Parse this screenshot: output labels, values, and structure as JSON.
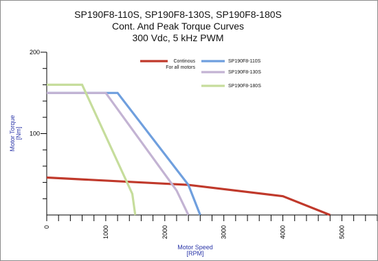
{
  "chart_data": {
    "type": "line",
    "title_lines": [
      "SP190F8-110S, SP190F8-130S, SP190F8-180S",
      "Cont. And Peak Torque Curves",
      "300 Vdc, 5 kHz PWM"
    ],
    "xlabel": [
      "Motor Speed",
      "[RPM]"
    ],
    "ylabel": [
      "Motor Torque",
      "[Nm]"
    ],
    "xlim": [
      0,
      5600
    ],
    "ylim": [
      0,
      200
    ],
    "x_ticks": [
      0,
      1000,
      2000,
      3000,
      4000,
      5000
    ],
    "x_ticks_minor_step": 200,
    "y_ticks": [
      100,
      200
    ],
    "y_ticks_minor_step": 20,
    "grid": false,
    "legend_position": "top-right",
    "series": [
      {
        "name": "Continous For all motors",
        "name_lines": [
          "Continous",
          "For all motors"
        ],
        "color": "#c0392b",
        "x": [
          0,
          2400,
          4000,
          4800
        ],
        "y": [
          46,
          37,
          23,
          0
        ]
      },
      {
        "name": "SP190F8-110S",
        "name_lines": [
          "SP190F8-110S"
        ],
        "color": "#6f9fde",
        "x": [
          0,
          1200,
          2400,
          2600
        ],
        "y": [
          150,
          150,
          37,
          0
        ]
      },
      {
        "name": "SP190F8-130S",
        "name_lines": [
          "SP190F8-130S"
        ],
        "color": "#c3b3d3",
        "x": [
          0,
          1000,
          2200,
          2400
        ],
        "y": [
          150,
          150,
          30,
          0
        ]
      },
      {
        "name": "SP190F8-180S",
        "name_lines": [
          "SP190F8-180S"
        ],
        "color": "#c6dd9c",
        "x": [
          0,
          600,
          1450,
          1500
        ],
        "y": [
          160,
          160,
          26,
          0
        ]
      }
    ]
  }
}
